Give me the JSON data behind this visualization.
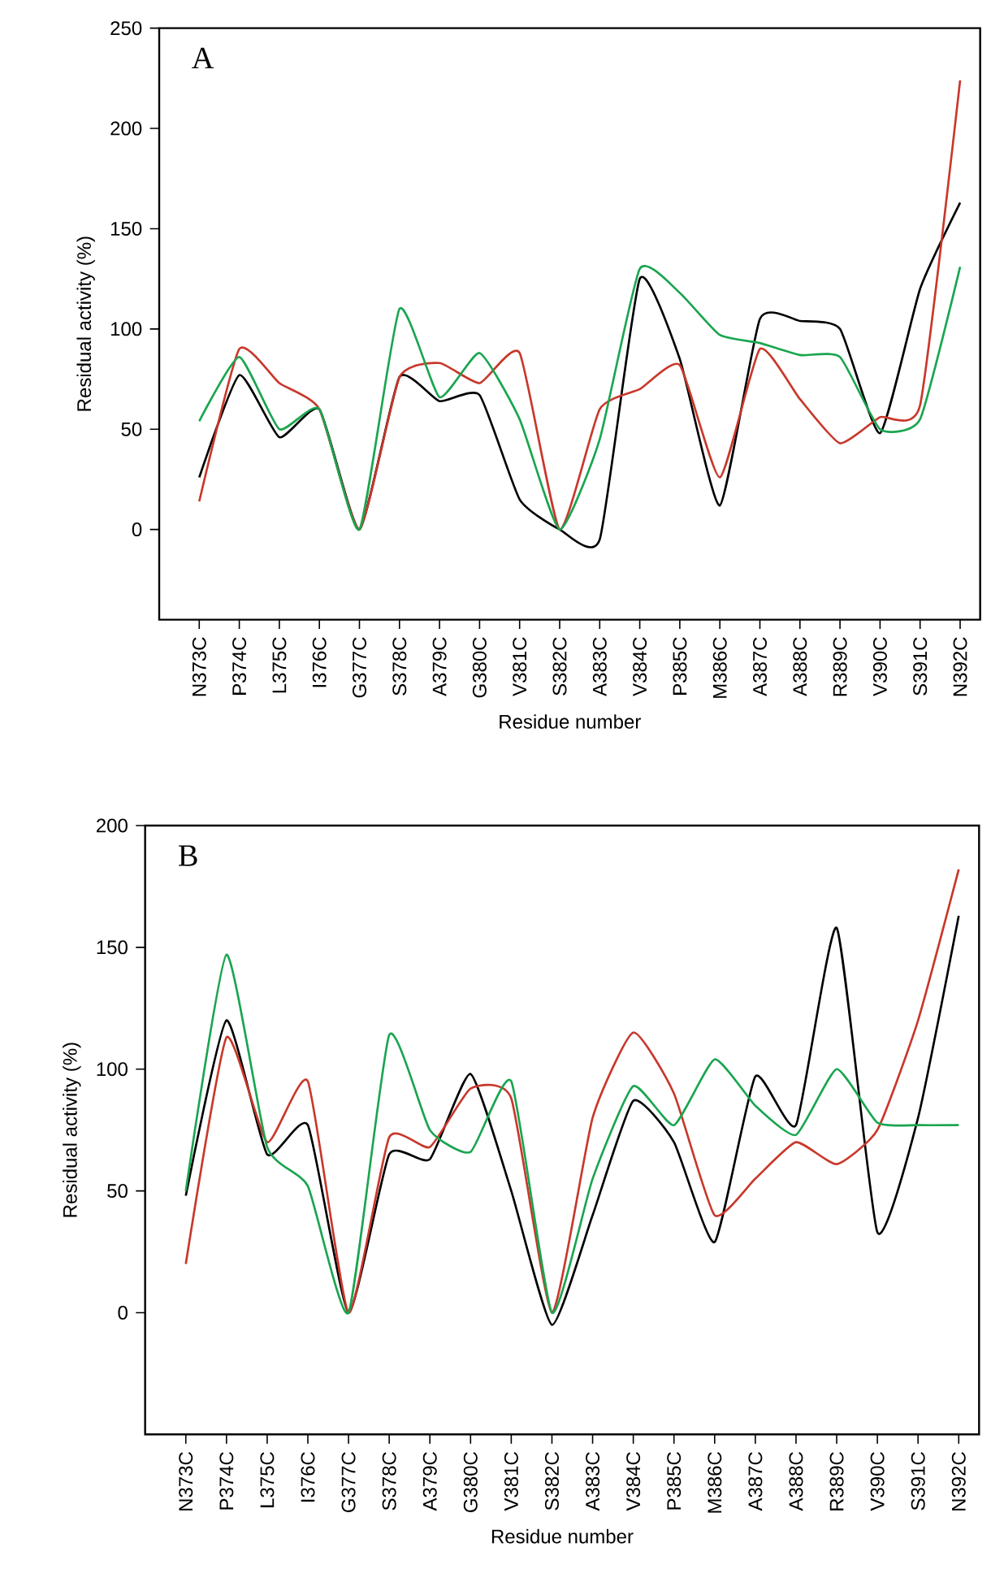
{
  "chart_data": [
    {
      "type": "line",
      "annotations": [
        "A"
      ],
      "xlabel": "Residue number",
      "ylabel": "Residual activity (%)",
      "categories": [
        "N373C",
        "P374C",
        "L375C",
        "I376C",
        "G377C",
        "S378C",
        "A379C",
        "G380C",
        "V381C",
        "S382C",
        "A383C",
        "V384C",
        "P385C",
        "M386C",
        "A387C",
        "A388C",
        "R389C",
        "V390C",
        "S391C",
        "N392C"
      ],
      "ylim": [
        -45,
        250
      ],
      "yticks": [
        0,
        50,
        100,
        150,
        200,
        250
      ],
      "grid": false,
      "marker": "none",
      "line_style": "solid",
      "series": [
        {
          "color": "#000000",
          "values": [
            26,
            77,
            46,
            60,
            0,
            76,
            64,
            67,
            15,
            0,
            -5,
            125,
            85,
            12,
            105,
            104,
            100,
            48,
            120,
            163
          ]
        },
        {
          "color": "#c8382b",
          "values": [
            14,
            90,
            73,
            60,
            0,
            76,
            83,
            73,
            88,
            0,
            60,
            70,
            82,
            26,
            90,
            65,
            43,
            56,
            62,
            224
          ]
        },
        {
          "color": "#1aa550",
          "values": [
            54,
            86,
            50,
            60,
            0,
            110,
            66,
            88,
            55,
            0,
            45,
            130,
            118,
            97,
            93,
            87,
            86,
            50,
            55,
            131
          ]
        }
      ]
    },
    {
      "type": "line",
      "annotations": [
        "B"
      ],
      "xlabel": "Residue number",
      "ylabel": "Residual activity (%)",
      "categories": [
        "N373C",
        "P374C",
        "L375C",
        "I376C",
        "G377C",
        "S378C",
        "A379C",
        "G380C",
        "V381C",
        "S382C",
        "A383C",
        "V384C",
        "P385C",
        "M386C",
        "A387C",
        "A388C",
        "R389C",
        "V390C",
        "S391C",
        "N392C"
      ],
      "ylim": [
        -50,
        200
      ],
      "yticks": [
        0,
        50,
        100,
        150,
        200
      ],
      "grid": false,
      "marker": "none",
      "line_style": "solid",
      "series": [
        {
          "color": "#000000",
          "values": [
            48,
            120,
            65,
            77,
            0,
            65,
            63,
            98,
            50,
            -5,
            40,
            87,
            70,
            29,
            97,
            77,
            158,
            33,
            80,
            163
          ]
        },
        {
          "color": "#c8382b",
          "values": [
            20,
            113,
            70,
            95,
            0,
            72,
            68,
            92,
            88,
            0,
            80,
            115,
            90,
            40,
            55,
            70,
            61,
            75,
            120,
            182
          ]
        },
        {
          "color": "#1aa550",
          "values": [
            50,
            147,
            68,
            52,
            0,
            114,
            75,
            66,
            95,
            0,
            55,
            93,
            77,
            104,
            85,
            73,
            100,
            78,
            77,
            77
          ]
        }
      ]
    }
  ]
}
